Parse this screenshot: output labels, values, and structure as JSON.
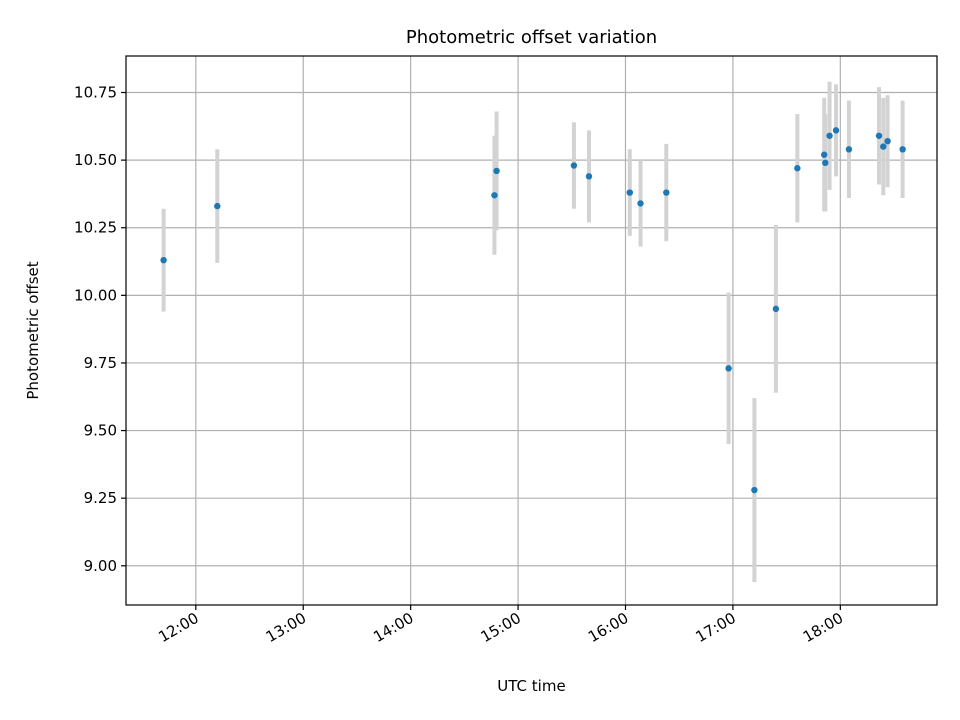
{
  "chart_data": {
    "type": "scatter",
    "title": "Photometric offset variation",
    "xlabel": "UTC time",
    "ylabel": "Photometric offset",
    "x_unit": "UTC hours",
    "xlim": [
      11.35,
      18.9
    ],
    "ylim": [
      8.855,
      10.885
    ],
    "x_ticks": [
      12,
      13,
      14,
      15,
      16,
      17,
      18
    ],
    "x_tick_labels": [
      "12:00",
      "13:00",
      "14:00",
      "15:00",
      "16:00",
      "17:00",
      "18:00"
    ],
    "y_ticks": [
      9.0,
      9.25,
      9.5,
      9.75,
      10.0,
      10.25,
      10.5,
      10.75
    ],
    "y_tick_labels": [
      "9.00",
      "9.25",
      "9.50",
      "9.75",
      "10.00",
      "10.25",
      "10.50",
      "10.75"
    ],
    "grid": true,
    "point_color": "#1f77b4",
    "errorbar_color": "#d3d3d3",
    "points": [
      {
        "x": 11.7,
        "y": 10.13,
        "yerr": 0.19
      },
      {
        "x": 12.2,
        "y": 10.33,
        "yerr": 0.21
      },
      {
        "x": 14.78,
        "y": 10.37,
        "yerr": 0.22
      },
      {
        "x": 14.8,
        "y": 10.46,
        "yerr": 0.22
      },
      {
        "x": 15.52,
        "y": 10.48,
        "yerr": 0.16
      },
      {
        "x": 15.66,
        "y": 10.44,
        "yerr": 0.17
      },
      {
        "x": 16.04,
        "y": 10.38,
        "yerr": 0.16
      },
      {
        "x": 16.14,
        "y": 10.34,
        "yerr": 0.16
      },
      {
        "x": 16.38,
        "y": 10.38,
        "yerr": 0.18
      },
      {
        "x": 16.96,
        "y": 9.73,
        "yerr": 0.28
      },
      {
        "x": 17.2,
        "y": 9.28,
        "yerr": 0.34
      },
      {
        "x": 17.4,
        "y": 9.95,
        "yerr": 0.31
      },
      {
        "x": 17.6,
        "y": 10.47,
        "yerr": 0.2
      },
      {
        "x": 17.85,
        "y": 10.52,
        "yerr": 0.21
      },
      {
        "x": 17.86,
        "y": 10.49,
        "yerr": 0.18
      },
      {
        "x": 17.9,
        "y": 10.59,
        "yerr": 0.2
      },
      {
        "x": 17.96,
        "y": 10.61,
        "yerr": 0.17
      },
      {
        "x": 18.08,
        "y": 10.54,
        "yerr": 0.18
      },
      {
        "x": 18.36,
        "y": 10.59,
        "yerr": 0.18
      },
      {
        "x": 18.4,
        "y": 10.55,
        "yerr": 0.18
      },
      {
        "x": 18.44,
        "y": 10.57,
        "yerr": 0.17
      },
      {
        "x": 18.58,
        "y": 10.54,
        "yerr": 0.18
      }
    ]
  }
}
